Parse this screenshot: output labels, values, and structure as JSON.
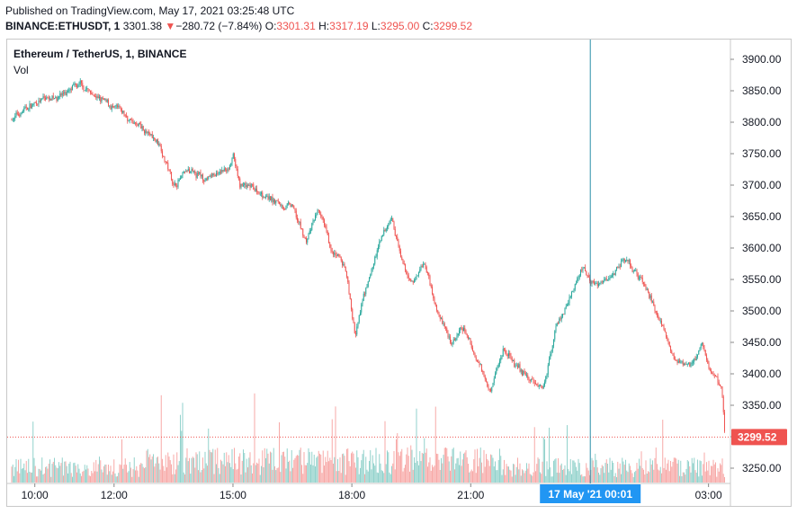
{
  "header": {
    "published": "Published on TradingView.com, May 17, 2021 03:25:48 UTC",
    "symbol": "BINANCE:ETHUSDT, 1",
    "last": "3301.38",
    "change_arrow": "▼",
    "change": "−280.72 (−7.84%)",
    "o_label": "O:",
    "o_value": "3301.31",
    "h_label": "H:",
    "h_value": "3317.19",
    "l_label": "L:",
    "l_value": "3295.00",
    "c_label": "C:",
    "c_value": "3299.52"
  },
  "legend": {
    "title": "Ethereum / TetherUS, 1, BINANCE",
    "vol": "Vol"
  },
  "colors": {
    "up": "#26a69a",
    "down": "#ef5350",
    "crosshair": "#2a8fa8",
    "price_tag": "#ef5350",
    "time_tag": "#2196f3"
  },
  "chart_data": {
    "type": "candlestick",
    "ylim": [
      3225,
      3925
    ],
    "y_ticks": [
      "3900.00",
      "3850.00",
      "3800.00",
      "3750.00",
      "3700.00",
      "3650.00",
      "3600.00",
      "3550.00",
      "3500.00",
      "3450.00",
      "3400.00",
      "3350.00",
      "3300.00",
      "3250.00"
    ],
    "x_ticks": [
      "10:00",
      "12:00",
      "15:00",
      "18:00",
      "21:00",
      "03:00"
    ],
    "last_price_label": "3299.52",
    "crosshair_time_label": "17 May '21   00:01",
    "price_path": [
      [
        "09:25",
        3805
      ],
      [
        "09:45",
        3820
      ],
      [
        "10:10",
        3835
      ],
      [
        "10:40",
        3845
      ],
      [
        "11:10",
        3858
      ],
      [
        "11:40",
        3835
      ],
      [
        "12:10",
        3815
      ],
      [
        "12:40",
        3790
      ],
      [
        "13:10",
        3765
      ],
      [
        "13:30",
        3700
      ],
      [
        "13:50",
        3720
      ],
      [
        "14:20",
        3710
      ],
      [
        "14:50",
        3725
      ],
      [
        "15:00",
        3745
      ],
      [
        "15:10",
        3700
      ],
      [
        "15:40",
        3690
      ],
      [
        "16:10",
        3670
      ],
      [
        "16:30",
        3665
      ],
      [
        "16:50",
        3610
      ],
      [
        "17:10",
        3660
      ],
      [
        "17:30",
        3590
      ],
      [
        "17:50",
        3570
      ],
      [
        "18:05",
        3460
      ],
      [
        "18:20",
        3530
      ],
      [
        "18:40",
        3600
      ],
      [
        "19:00",
        3650
      ],
      [
        "19:15",
        3580
      ],
      [
        "19:30",
        3540
      ],
      [
        "19:50",
        3580
      ],
      [
        "20:10",
        3500
      ],
      [
        "20:30",
        3450
      ],
      [
        "20:50",
        3470
      ],
      [
        "21:10",
        3420
      ],
      [
        "21:30",
        3380
      ],
      [
        "21:50",
        3440
      ],
      [
        "22:10",
        3410
      ],
      [
        "22:30",
        3390
      ],
      [
        "22:50",
        3380
      ],
      [
        "23:10",
        3480
      ],
      [
        "23:30",
        3520
      ],
      [
        "23:50",
        3570
      ],
      [
        "00:00",
        3555
      ],
      [
        "00:10",
        3540
      ],
      [
        "00:30",
        3555
      ],
      [
        "00:50",
        3580
      ],
      [
        "01:10",
        3560
      ],
      [
        "01:20",
        3545
      ],
      [
        "01:40",
        3500
      ],
      [
        "02:00",
        3440
      ],
      [
        "02:20",
        3410
      ],
      [
        "02:40",
        3420
      ],
      [
        "02:50",
        3450
      ],
      [
        "03:00",
        3410
      ],
      [
        "03:10",
        3395
      ],
      [
        "03:20",
        3380
      ],
      [
        "03:25",
        3300
      ]
    ],
    "volume_ylim": [
      0,
      500
    ]
  }
}
